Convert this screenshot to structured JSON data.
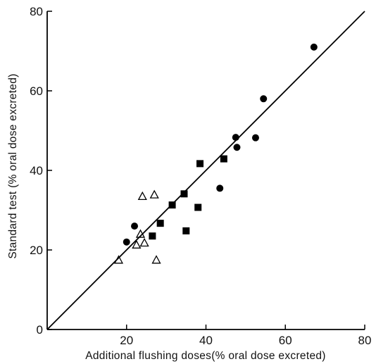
{
  "chart_data": {
    "type": "scatter",
    "title": "",
    "xlabel": "Additional flushing doses(% oral dose excreted)",
    "ylabel": "Standard test (% oral dose excreted)",
    "xlim": [
      0,
      80
    ],
    "ylim": [
      0,
      80
    ],
    "xticks": [
      "20",
      "40",
      "60",
      "80"
    ],
    "yticks": [
      "0",
      "20",
      "40",
      "60",
      "80"
    ],
    "grid": false,
    "legend": "none",
    "reference_line": {
      "type": "identity",
      "x": [
        0,
        80
      ],
      "y": [
        0,
        80
      ]
    },
    "series": [
      {
        "marker": "filled-circle",
        "color": "#000000",
        "points": [
          [
            20,
            22
          ],
          [
            22,
            26
          ],
          [
            43.5,
            35.5
          ],
          [
            47.5,
            48.3
          ],
          [
            47.8,
            45.8
          ],
          [
            52.5,
            48.2
          ],
          [
            54.5,
            58
          ],
          [
            67.2,
            71
          ]
        ]
      },
      {
        "marker": "filled-square",
        "color": "#000000",
        "points": [
          [
            26.5,
            23.5
          ],
          [
            28.5,
            26.7
          ],
          [
            31.5,
            31.3
          ],
          [
            34.5,
            34.1
          ],
          [
            35,
            24.8
          ],
          [
            38,
            30.7
          ],
          [
            38.5,
            41.7
          ],
          [
            44.5,
            42.9
          ]
        ]
      },
      {
        "marker": "open-triangle",
        "color": "#000000",
        "points": [
          [
            18,
            17.5
          ],
          [
            22.5,
            21.3
          ],
          [
            23.5,
            24
          ],
          [
            24,
            33.5
          ],
          [
            24.5,
            21.8
          ],
          [
            27,
            33.9
          ],
          [
            27.5,
            17.5
          ]
        ]
      }
    ]
  }
}
